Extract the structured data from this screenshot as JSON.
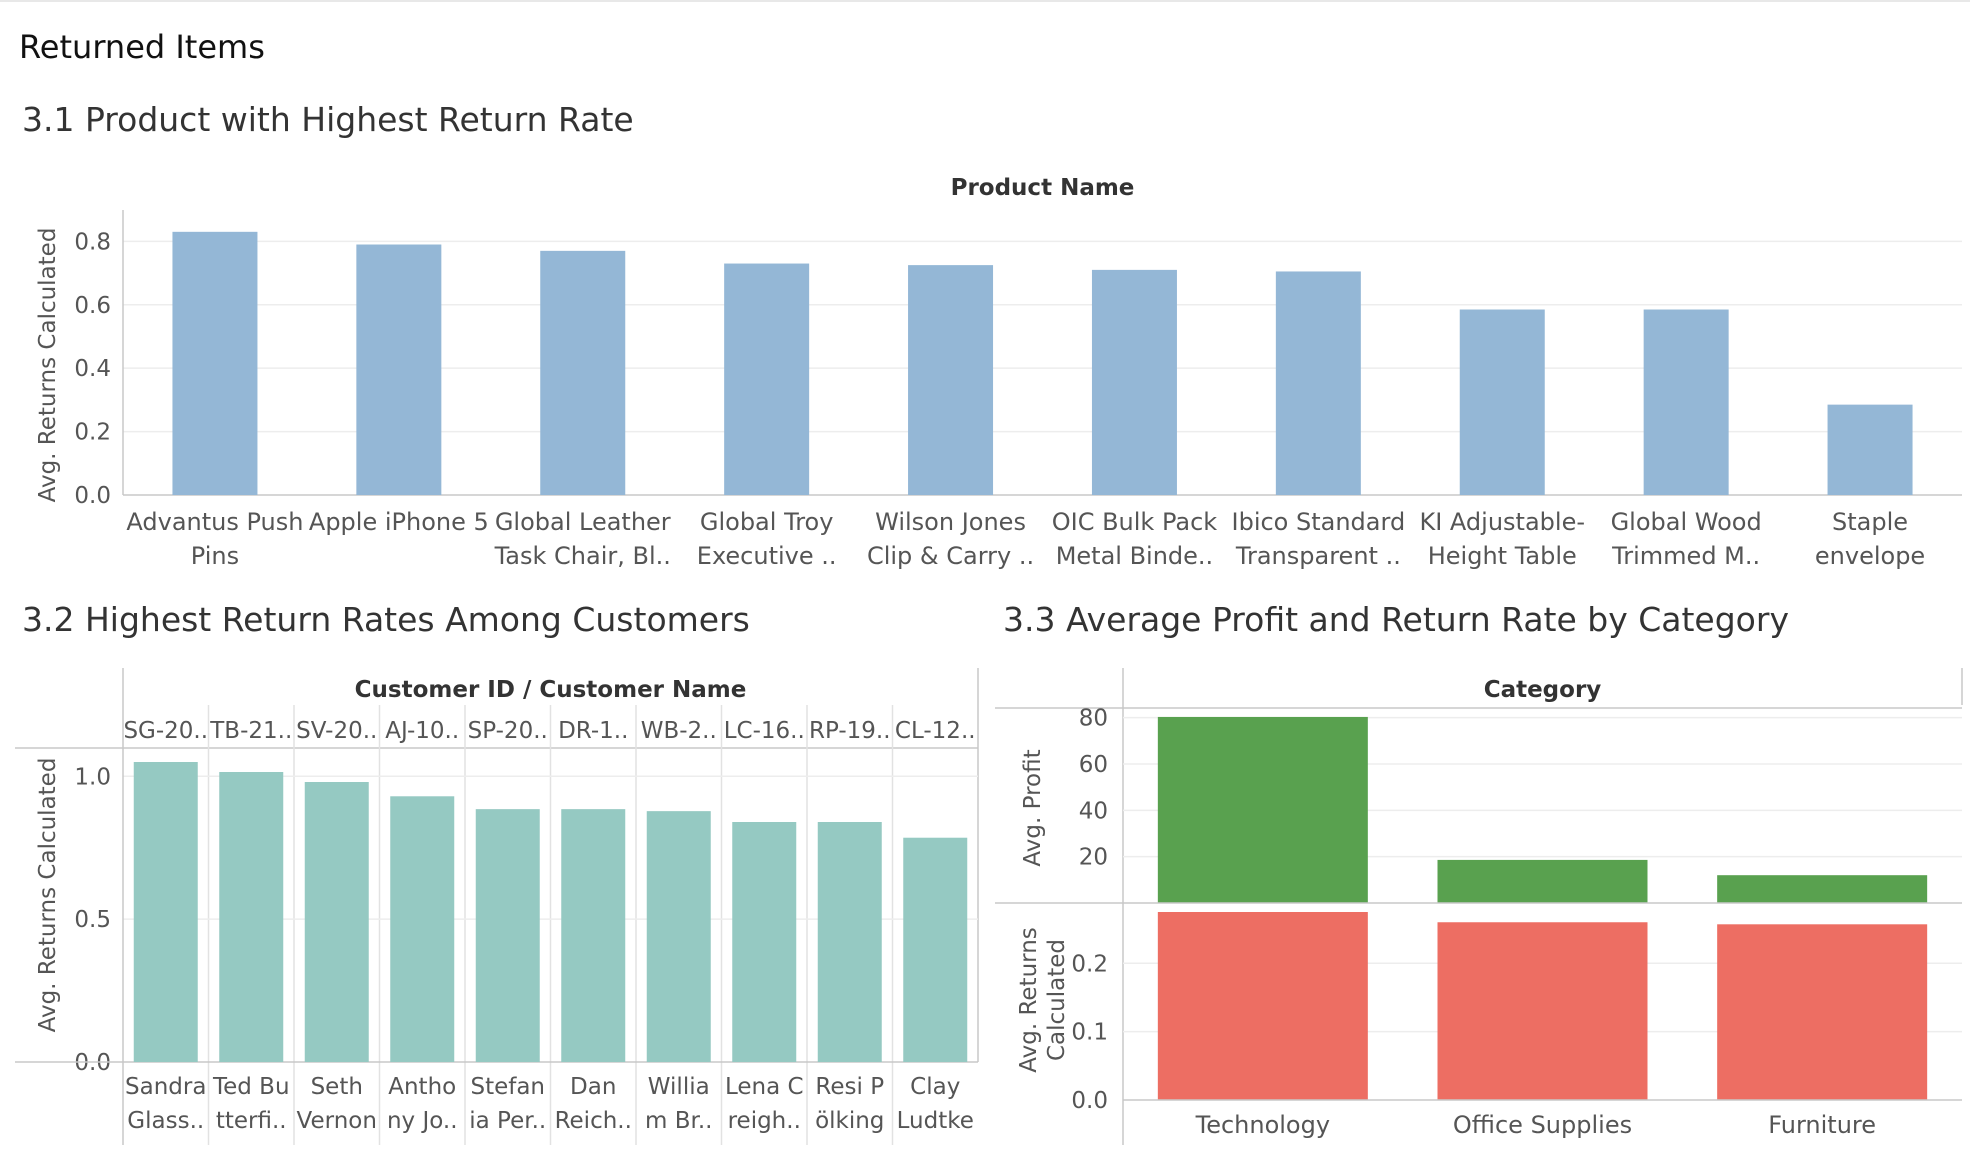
{
  "dashboard": {
    "title": "Returned Items"
  },
  "sheets": {
    "s1": {
      "title": "3.1 Product with Highest Return Rate"
    },
    "s2": {
      "title": "3.2 Highest Return Rates Among Customers"
    },
    "s3": {
      "title": "3.3 Average Profit and Return Rate by Category"
    }
  },
  "colors": {
    "product_bars": "#94b7d6",
    "customer_bars": "#95c9c2",
    "profit_bars": "#59a14f",
    "returns_bars": "#ed6e63"
  },
  "chart_data": [
    {
      "type": "bar",
      "header": "Product Name",
      "ylabel": "Avg. Returns Calculated",
      "ylim": [
        0,
        0.82
      ],
      "yticks": [
        "0.0",
        "0.2",
        "0.4",
        "0.6",
        "0.8"
      ],
      "categories": [
        [
          "Advantus Push",
          "Pins"
        ],
        [
          "Apple iPhone 5"
        ],
        [
          "Global Leather",
          "Task Chair, Bl.."
        ],
        [
          "Global Troy",
          "Executive .."
        ],
        [
          "Wilson Jones",
          "Clip & Carry .."
        ],
        [
          "OIC Bulk Pack",
          "Metal Binde.."
        ],
        [
          "Ibico Standard",
          "Transparent .."
        ],
        [
          "KI Adjustable-",
          "Height Table"
        ],
        [
          "Global Wood",
          "Trimmed M.."
        ],
        [
          "Staple",
          "envelope"
        ]
      ],
      "values": [
        0.83,
        0.79,
        0.77,
        0.73,
        0.725,
        0.71,
        0.705,
        0.585,
        0.585,
        0.285
      ],
      "grid": true
    },
    {
      "type": "bar",
      "header": "Customer ID  /  Customer Name",
      "ylabel": "Avg. Returns Calculated",
      "ylim": [
        0,
        1.05
      ],
      "yticks": [
        "0.0",
        "0.5",
        "1.0"
      ],
      "customer_ids": [
        "SG-20..",
        "TB-21..",
        "SV-20..",
        "AJ-10..",
        "SP-20..",
        "DR-1..",
        "WB-2..",
        "LC-16..",
        "RP-19..",
        "CL-12.."
      ],
      "categories": [
        [
          "Sandra",
          "Glass.."
        ],
        [
          "Ted Bu",
          "tterfi.."
        ],
        [
          "Seth",
          "Vernon"
        ],
        [
          "Antho",
          "ny Jo.."
        ],
        [
          "Stefan",
          "ia Per.."
        ],
        [
          "Dan",
          "Reich.."
        ],
        [
          "Willia",
          "m Br.."
        ],
        [
          "Lena C",
          "reigh.."
        ],
        [
          "Resi P",
          "ölking"
        ],
        [
          "Clay",
          "Ludtke"
        ]
      ],
      "values": [
        1.05,
        1.015,
        0.98,
        0.93,
        0.885,
        0.885,
        0.878,
        0.84,
        0.84,
        0.785
      ],
      "grid": true
    },
    {
      "type": "bar",
      "header": "Category",
      "categories": [
        "Technology",
        "Office Supplies",
        "Furniture"
      ],
      "series": [
        {
          "name": "Avg. Profit",
          "values": [
            80.3,
            18.6,
            12.0
          ],
          "ylim": [
            0,
            82
          ],
          "yticks": [
            "20",
            "40",
            "60",
            "80"
          ]
        },
        {
          "name": "Avg. Returns Calculated",
          "values": [
            0.275,
            0.26,
            0.257
          ],
          "ylim": [
            0,
            0.275
          ],
          "yticks": [
            "0.0",
            "0.1",
            "0.2"
          ]
        }
      ],
      "grid": true
    }
  ]
}
